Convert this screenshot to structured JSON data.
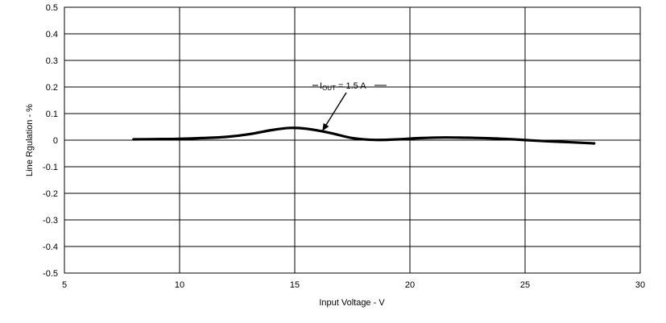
{
  "chart_data": {
    "type": "line",
    "title": "",
    "xlabel": "Input Voltage - V",
    "ylabel": "Line Rgulation - %",
    "xlim": [
      5,
      30
    ],
    "ylim": [
      -0.5,
      0.5
    ],
    "xticks": [
      5,
      10,
      15,
      20,
      25,
      30
    ],
    "xtick_labels": [
      "5",
      "10",
      "15",
      "20",
      "25",
      "30"
    ],
    "yticks": [
      0.5,
      0.4,
      0.3,
      0.2,
      0.1,
      0,
      -0.1,
      -0.2,
      -0.3,
      -0.4,
      -0.5
    ],
    "ytick_labels": [
      "0.5",
      "0.4",
      "0.3",
      "0.2",
      "0.1",
      "0",
      "-0.1",
      "-0.2",
      "-0.3",
      "-0.4",
      "-0.5"
    ],
    "grid": true,
    "legend": "none",
    "series": [
      {
        "x": [
          8,
          9,
          10,
          11,
          12,
          13,
          14,
          14.8,
          15.5,
          16.5,
          17.5,
          18.5,
          19.5,
          20.5,
          21.5,
          22.5,
          23.5,
          24.5,
          25.5,
          26.5,
          27.5,
          28
        ],
        "y": [
          0.003,
          0.004,
          0.005,
          0.008,
          0.012,
          0.022,
          0.038,
          0.046,
          0.043,
          0.028,
          0.008,
          0.001,
          0.003,
          0.008,
          0.01,
          0.009,
          0.007,
          0.003,
          -0.002,
          -0.006,
          -0.01,
          -0.012
        ]
      }
    ],
    "annotation": {
      "main": "I",
      "subscript": "OUT",
      "rest": " = 1.5 A",
      "arrow_to": [
        16.2,
        0.035
      ]
    },
    "colors": {
      "line": "#000000",
      "grid": "#000000"
    }
  }
}
